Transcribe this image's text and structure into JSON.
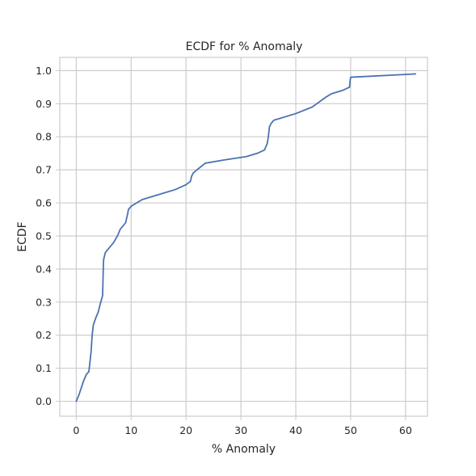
{
  "chart_data": {
    "type": "line",
    "title": "ECDF for % Anomaly",
    "xlabel": "% Anomaly",
    "ylabel": "ECDF",
    "xlim": [
      -3,
      64
    ],
    "ylim": [
      -0.045,
      1.04
    ],
    "xticks": [
      0,
      10,
      20,
      30,
      40,
      50,
      60
    ],
    "yticks": [
      0.0,
      0.1,
      0.2,
      0.3,
      0.4,
      0.5,
      0.6,
      0.7,
      0.8,
      0.9,
      1.0
    ],
    "grid": true,
    "line_color": "#4c72b0",
    "series": [
      {
        "x": [
          0.0,
          0.5,
          0.9,
          1.3,
          1.8,
          2.3,
          2.5,
          2.7,
          2.9,
          3.1,
          3.5,
          4.0,
          4.3,
          4.8,
          4.95,
          5.0,
          5.3,
          5.8,
          6.8,
          7.5,
          8.0,
          9.0,
          9.4,
          9.5,
          10.0,
          12.0,
          16.0,
          18.0,
          20.0,
          20.8,
          21.0,
          21.3,
          22.0,
          23.5,
          27.0,
          31.0,
          33.0,
          34.3,
          34.8,
          35.0,
          35.2,
          35.5,
          36.0,
          40.0,
          43.0,
          45.5,
          46.5,
          48.5,
          49.8,
          49.9,
          50.0,
          61.8
        ],
        "y": [
          0.0,
          0.02,
          0.04,
          0.06,
          0.08,
          0.09,
          0.12,
          0.15,
          0.2,
          0.23,
          0.25,
          0.27,
          0.29,
          0.32,
          0.42,
          0.43,
          0.45,
          0.46,
          0.48,
          0.5,
          0.52,
          0.54,
          0.57,
          0.58,
          0.59,
          0.61,
          0.63,
          0.64,
          0.655,
          0.665,
          0.68,
          0.69,
          0.7,
          0.72,
          0.73,
          0.74,
          0.75,
          0.76,
          0.78,
          0.8,
          0.83,
          0.84,
          0.85,
          0.87,
          0.89,
          0.92,
          0.93,
          0.94,
          0.95,
          0.97,
          0.98,
          0.99
        ]
      }
    ]
  }
}
